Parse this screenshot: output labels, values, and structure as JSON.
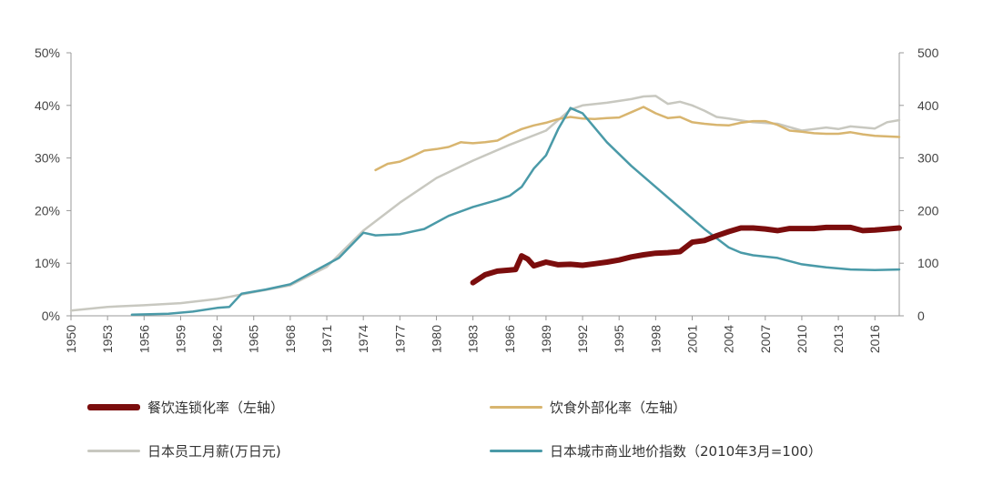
{
  "chart_data": {
    "type": "line",
    "x_ticks": [
      "1950",
      "1953",
      "1956",
      "1959",
      "1962",
      "1965",
      "1968",
      "1971",
      "1974",
      "1977",
      "1980",
      "1983",
      "1986",
      "1989",
      "1992",
      "1995",
      "1998",
      "2001",
      "2004",
      "2007",
      "2010",
      "2013",
      "2016"
    ],
    "x_range": [
      1950,
      2018
    ],
    "y_left": {
      "ticks": [
        "0%",
        "10%",
        "20%",
        "30%",
        "40%",
        "50%"
      ],
      "range": [
        0,
        50
      ]
    },
    "y_right": {
      "ticks": [
        "0",
        "100",
        "200",
        "300",
        "400",
        "500"
      ],
      "range": [
        0,
        500
      ]
    },
    "grid": false,
    "legend_position": "bottom",
    "series": [
      {
        "name": "餐饮连锁化率（左轴）",
        "axis": "left",
        "color": "#7b0d0d",
        "width": 6,
        "points": [
          [
            1983,
            6.3
          ],
          [
            1984,
            7.8
          ],
          [
            1985,
            8.5
          ],
          [
            1986,
            8.7
          ],
          [
            1986.5,
            8.8
          ],
          [
            1987,
            11.4
          ],
          [
            1987.5,
            10.8
          ],
          [
            1988,
            9.5
          ],
          [
            1989,
            10.2
          ],
          [
            1990,
            9.7
          ],
          [
            1991,
            9.8
          ],
          [
            1992,
            9.6
          ],
          [
            1993,
            9.9
          ],
          [
            1994,
            10.2
          ],
          [
            1995,
            10.6
          ],
          [
            1996,
            11.2
          ],
          [
            1997,
            11.6
          ],
          [
            1998,
            11.9
          ],
          [
            1999,
            12.0
          ],
          [
            2000,
            12.2
          ],
          [
            2001,
            14.0
          ],
          [
            2002,
            14.3
          ],
          [
            2003,
            15.2
          ],
          [
            2004,
            16.0
          ],
          [
            2005,
            16.7
          ],
          [
            2006,
            16.7
          ],
          [
            2007,
            16.5
          ],
          [
            2008,
            16.2
          ],
          [
            2009,
            16.6
          ],
          [
            2010,
            16.6
          ],
          [
            2011,
            16.6
          ],
          [
            2012,
            16.8
          ],
          [
            2013,
            16.8
          ],
          [
            2014,
            16.8
          ],
          [
            2015,
            16.2
          ],
          [
            2016,
            16.3
          ],
          [
            2017,
            16.5
          ],
          [
            2018,
            16.7
          ]
        ]
      },
      {
        "name": "饮食外部化率（左轴）",
        "axis": "left",
        "color": "#d8b56f",
        "width": 2.5,
        "points": [
          [
            1975,
            27.7
          ],
          [
            1976,
            28.9
          ],
          [
            1977,
            29.3
          ],
          [
            1978,
            30.3
          ],
          [
            1979,
            31.4
          ],
          [
            1980,
            31.7
          ],
          [
            1981,
            32.1
          ],
          [
            1982,
            33.0
          ],
          [
            1983,
            32.8
          ],
          [
            1984,
            33.0
          ],
          [
            1985,
            33.3
          ],
          [
            1986,
            34.5
          ],
          [
            1987,
            35.5
          ],
          [
            1988,
            36.2
          ],
          [
            1989,
            36.7
          ],
          [
            1990,
            37.4
          ],
          [
            1991,
            37.8
          ],
          [
            1992,
            37.5
          ],
          [
            1993,
            37.4
          ],
          [
            1994,
            37.6
          ],
          [
            1995,
            37.7
          ],
          [
            1996,
            38.7
          ],
          [
            1997,
            39.7
          ],
          [
            1998,
            38.5
          ],
          [
            1999,
            37.6
          ],
          [
            2000,
            37.8
          ],
          [
            2001,
            36.8
          ],
          [
            2002,
            36.5
          ],
          [
            2003,
            36.3
          ],
          [
            2004,
            36.2
          ],
          [
            2005,
            36.7
          ],
          [
            2006,
            37.0
          ],
          [
            2007,
            37.0
          ],
          [
            2008,
            36.3
          ],
          [
            2009,
            35.2
          ],
          [
            2010,
            35.0
          ],
          [
            2011,
            34.7
          ],
          [
            2012,
            34.6
          ],
          [
            2013,
            34.6
          ],
          [
            2014,
            34.9
          ],
          [
            2015,
            34.5
          ],
          [
            2016,
            34.2
          ],
          [
            2017,
            34.1
          ],
          [
            2018,
            34.0
          ]
        ]
      },
      {
        "name": "日本员工月薪(万日元)",
        "axis": "right",
        "color": "#c8c8c0",
        "width": 2.5,
        "points": [
          [
            1950,
            10
          ],
          [
            1953,
            17
          ],
          [
            1956,
            20
          ],
          [
            1959,
            24
          ],
          [
            1962,
            32
          ],
          [
            1963,
            36
          ],
          [
            1965,
            45
          ],
          [
            1968,
            58
          ],
          [
            1971,
            93
          ],
          [
            1974,
            162
          ],
          [
            1977,
            215
          ],
          [
            1980,
            262
          ],
          [
            1983,
            295
          ],
          [
            1986,
            325
          ],
          [
            1989,
            352
          ],
          [
            1991,
            392
          ],
          [
            1992,
            400
          ],
          [
            1994,
            405
          ],
          [
            1996,
            412
          ],
          [
            1997,
            417
          ],
          [
            1998,
            418
          ],
          [
            1999,
            403
          ],
          [
            2000,
            407
          ],
          [
            2001,
            400
          ],
          [
            2002,
            390
          ],
          [
            2003,
            378
          ],
          [
            2004,
            375
          ],
          [
            2006,
            368
          ],
          [
            2008,
            365
          ],
          [
            2010,
            352
          ],
          [
            2012,
            358
          ],
          [
            2013,
            355
          ],
          [
            2014,
            360
          ],
          [
            2016,
            356
          ],
          [
            2017,
            368
          ],
          [
            2018,
            372
          ]
        ]
      },
      {
        "name": "日本城市商业地价指数（2010年3月=100）",
        "axis": "right",
        "color": "#4a9aa8",
        "width": 2.5,
        "points": [
          [
            1955,
            2
          ],
          [
            1958,
            4
          ],
          [
            1960,
            8
          ],
          [
            1962,
            15
          ],
          [
            1963,
            17
          ],
          [
            1964,
            42
          ],
          [
            1966,
            50
          ],
          [
            1968,
            60
          ],
          [
            1970,
            85
          ],
          [
            1972,
            110
          ],
          [
            1974,
            158
          ],
          [
            1975,
            153
          ],
          [
            1977,
            155
          ],
          [
            1979,
            165
          ],
          [
            1981,
            190
          ],
          [
            1983,
            207
          ],
          [
            1985,
            220
          ],
          [
            1986,
            228
          ],
          [
            1987,
            245
          ],
          [
            1988,
            280
          ],
          [
            1989,
            305
          ],
          [
            1990,
            355
          ],
          [
            1991,
            395
          ],
          [
            1992,
            385
          ],
          [
            1994,
            330
          ],
          [
            1996,
            285
          ],
          [
            1998,
            245
          ],
          [
            2000,
            205
          ],
          [
            2002,
            165
          ],
          [
            2004,
            130
          ],
          [
            2005,
            120
          ],
          [
            2006,
            115
          ],
          [
            2008,
            110
          ],
          [
            2010,
            98
          ],
          [
            2012,
            92
          ],
          [
            2014,
            88
          ],
          [
            2016,
            87
          ],
          [
            2018,
            88
          ]
        ]
      }
    ]
  }
}
